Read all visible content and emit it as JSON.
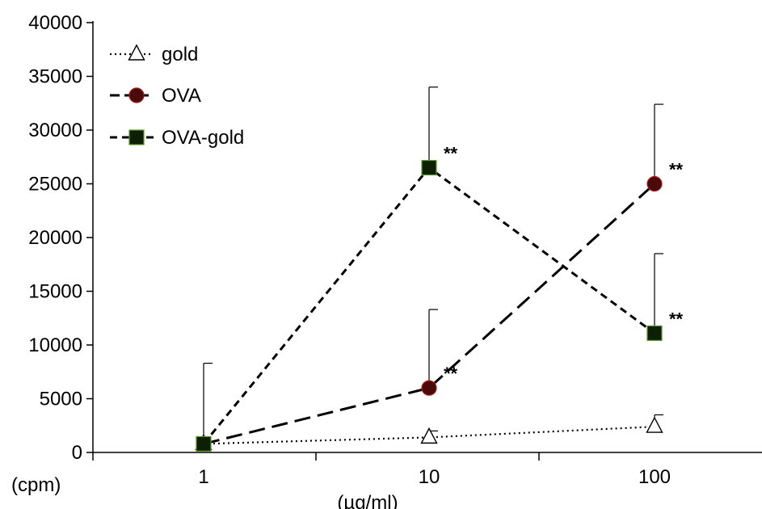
{
  "chart_data": {
    "type": "line",
    "x": [
      1,
      10,
      100
    ],
    "x_scale": "log",
    "xlabel": "(µg/ml)",
    "ylabel": "(cpm)",
    "ylim": [
      0,
      40000
    ],
    "y_ticks": [
      0,
      5000,
      10000,
      15000,
      20000,
      25000,
      30000,
      35000,
      40000
    ],
    "x_tick_labels": [
      "1",
      "10",
      "100"
    ],
    "grid": false,
    "legend_position": "top-left",
    "series": [
      {
        "name": "gold",
        "marker": "triangle-open",
        "line": "dotted",
        "values": [
          800,
          1400,
          2400
        ],
        "errors": [
          null,
          600,
          1100
        ],
        "significance": [
          "",
          "",
          ""
        ]
      },
      {
        "name": "OVA",
        "marker": "circle-filled",
        "color": "#4a0a0a",
        "line": "long-dash",
        "values": [
          800,
          6000,
          25000
        ],
        "errors": [
          null,
          7300,
          7400
        ],
        "significance": [
          "",
          "**",
          "**"
        ]
      },
      {
        "name": "OVA-gold",
        "marker": "square-filled",
        "color": "#0d1f05",
        "line": "short-dash",
        "values": [
          800,
          26500,
          11100
        ],
        "errors": [
          7500,
          7500,
          7400
        ],
        "significance": [
          "",
          "**",
          "**"
        ]
      }
    ]
  }
}
